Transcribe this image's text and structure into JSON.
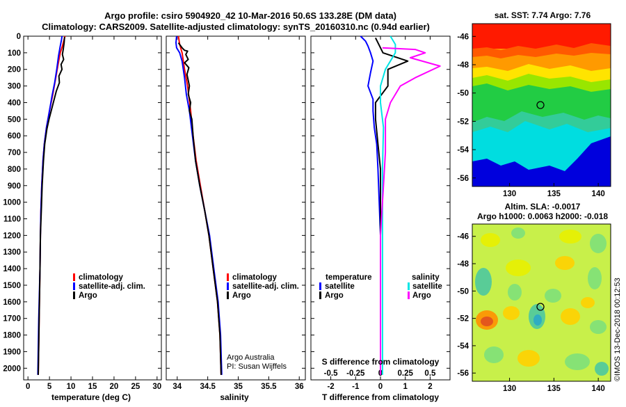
{
  "header": {
    "title_line1": "Argo profile: csiro 5904920_42 10-Mar-2016 50.6S 133.28E (DM data)",
    "title_line2": "Climatology: CARS2009. Satellite-adjusted climatology: synTS_20160310.nc (0.94d earlier)"
  },
  "colors": {
    "climatology": "#ff0000",
    "satellite": "#0000ff",
    "argo": "#000000",
    "sat_salinity": "#00e5e5",
    "argo_salinity": "#ff00ff"
  },
  "depth_ticks": [
    "0",
    "100",
    "200",
    "300",
    "400",
    "500",
    "600",
    "700",
    "800",
    "900",
    "1000",
    "1100",
    "1200",
    "1300",
    "1400",
    "1500",
    "1600",
    "1700",
    "1800",
    "1900",
    "2000"
  ],
  "chart_data": [
    {
      "type": "line",
      "id": "temperature",
      "xlabel": "temperature (deg C)",
      "xlim": [
        -1,
        31
      ],
      "ylim": [
        0,
        2070
      ],
      "y_inverted": true,
      "xticks": [
        "0",
        "5",
        "10",
        "15",
        "20",
        "25",
        "30"
      ],
      "legend": [
        "climatology",
        "satellite-adj. clim.",
        "Argo"
      ],
      "series": [
        {
          "name": "climatology",
          "color": "#ff0000",
          "points": [
            [
              8.6,
              0
            ],
            [
              8.4,
              20
            ],
            [
              8.0,
              60
            ],
            [
              7.5,
              100
            ],
            [
              7.0,
              170
            ],
            [
              6.4,
              260
            ],
            [
              5.7,
              360
            ],
            [
              5.0,
              450
            ],
            [
              4.3,
              550
            ],
            [
              3.8,
              650
            ],
            [
              3.5,
              750
            ],
            [
              3.2,
              900
            ],
            [
              3.0,
              1050
            ],
            [
              2.9,
              1200
            ],
            [
              2.8,
              1400
            ],
            [
              2.6,
              1700
            ],
            [
              2.4,
              2040
            ]
          ]
        },
        {
          "name": "satellite-adj. clim.",
          "color": "#0000ff",
          "points": [
            [
              7.9,
              0
            ],
            [
              7.8,
              20
            ],
            [
              7.5,
              60
            ],
            [
              7.1,
              120
            ],
            [
              6.7,
              200
            ],
            [
              6.2,
              280
            ],
            [
              5.6,
              360
            ],
            [
              5.0,
              450
            ],
            [
              4.3,
              550
            ],
            [
              3.8,
              650
            ],
            [
              3.5,
              750
            ],
            [
              3.2,
              900
            ],
            [
              3.0,
              1050
            ],
            [
              2.9,
              1200
            ],
            [
              2.8,
              1400
            ],
            [
              2.5,
              1700
            ],
            [
              2.3,
              2040
            ]
          ]
        },
        {
          "name": "Argo",
          "color": "#000000",
          "points": [
            [
              8.5,
              5
            ],
            [
              8.4,
              40
            ],
            [
              8.2,
              80
            ],
            [
              8.0,
              110
            ],
            [
              8.3,
              140
            ],
            [
              7.7,
              170
            ],
            [
              7.9,
              200
            ],
            [
              7.2,
              240
            ],
            [
              7.3,
              280
            ],
            [
              6.6,
              330
            ],
            [
              6.1,
              380
            ],
            [
              5.5,
              440
            ],
            [
              4.9,
              500
            ],
            [
              4.4,
              560
            ],
            [
              3.9,
              650
            ],
            [
              3.6,
              750
            ],
            [
              3.3,
              900
            ],
            [
              3.1,
              1050
            ],
            [
              2.9,
              1200
            ],
            [
              2.8,
              1400
            ],
            [
              2.6,
              1700
            ],
            [
              2.4,
              2040
            ]
          ]
        }
      ]
    },
    {
      "type": "line",
      "id": "salinity",
      "xlabel": "salinity",
      "xlim": [
        33.82,
        36.1
      ],
      "ylim": [
        0,
        2070
      ],
      "y_inverted": true,
      "xticks": [
        "34",
        "34.5",
        "35",
        "35.5",
        "36"
      ],
      "legend": [
        "climatology",
        "satellite-adj. clim.",
        "Argo"
      ],
      "annotation": [
        "Argo Australia",
        "PI: Susan Wijffels"
      ],
      "series": [
        {
          "name": "climatology",
          "color": "#ff0000",
          "points": [
            [
              34.02,
              0
            ],
            [
              34.04,
              50
            ],
            [
              34.08,
              100
            ],
            [
              34.12,
              200
            ],
            [
              34.17,
              300
            ],
            [
              34.22,
              450
            ],
            [
              34.26,
              600
            ],
            [
              34.31,
              750
            ],
            [
              34.38,
              900
            ],
            [
              34.45,
              1050
            ],
            [
              34.52,
              1200
            ],
            [
              34.59,
              1400
            ],
            [
              34.66,
              1600
            ],
            [
              34.7,
              1800
            ],
            [
              34.72,
              2040
            ]
          ]
        },
        {
          "name": "satellite-adj. clim.",
          "color": "#0000ff",
          "points": [
            [
              33.99,
              0
            ],
            [
              33.98,
              40
            ],
            [
              33.99,
              70
            ],
            [
              34.04,
              100
            ],
            [
              34.08,
              150
            ],
            [
              34.12,
              250
            ],
            [
              34.15,
              350
            ],
            [
              34.2,
              450
            ],
            [
              34.25,
              600
            ],
            [
              34.3,
              750
            ],
            [
              34.37,
              900
            ],
            [
              34.45,
              1050
            ],
            [
              34.53,
              1200
            ],
            [
              34.6,
              1400
            ],
            [
              34.67,
              1600
            ],
            [
              34.71,
              1800
            ],
            [
              34.73,
              2040
            ]
          ]
        },
        {
          "name": "Argo",
          "color": "#000000",
          "points": [
            [
              34.02,
              40
            ],
            [
              34.08,
              70
            ],
            [
              34.12,
              85
            ],
            [
              34.17,
              90
            ],
            [
              34.14,
              110
            ],
            [
              34.18,
              140
            ],
            [
              34.12,
              160
            ],
            [
              34.19,
              190
            ],
            [
              34.16,
              230
            ],
            [
              34.2,
              300
            ],
            [
              34.18,
              350
            ],
            [
              34.22,
              400
            ],
            [
              34.2,
              450
            ],
            [
              34.24,
              500
            ],
            [
              34.26,
              600
            ],
            [
              34.3,
              750
            ],
            [
              34.37,
              900
            ],
            [
              34.45,
              1050
            ],
            [
              34.52,
              1200
            ],
            [
              34.59,
              1400
            ],
            [
              34.66,
              1600
            ],
            [
              34.7,
              1800
            ],
            [
              34.72,
              2040
            ]
          ]
        }
      ]
    },
    {
      "type": "line",
      "id": "difference",
      "xlabel": "T difference from climatology",
      "xlabel2": "S difference from climatology",
      "xlim": [
        -2.8,
        2.8
      ],
      "ylim": [
        0,
        2070
      ],
      "y_inverted": true,
      "xticks": [
        "-2",
        "-1",
        "0",
        "1",
        "2"
      ],
      "xticks2": [
        "-0.5",
        "-0.25",
        "0",
        "0.25",
        "0.5"
      ],
      "legend": {
        "temperature_head": "temperature",
        "salinity_head": "salinity",
        "temp_items": [
          "satellite",
          "Argo"
        ],
        "sal_items": [
          "satellite",
          "Argo"
        ]
      },
      "series": [
        {
          "name": "T satellite",
          "color": "#0000ff",
          "points": [
            [
              -0.8,
              0
            ],
            [
              -0.6,
              30
            ],
            [
              -0.5,
              60
            ],
            [
              -0.4,
              100
            ],
            [
              -0.3,
              150
            ],
            [
              -0.4,
              220
            ],
            [
              -0.5,
              300
            ],
            [
              -0.3,
              380
            ],
            [
              -0.3,
              450
            ],
            [
              -0.25,
              550
            ],
            [
              -0.15,
              650
            ],
            [
              -0.1,
              800
            ],
            [
              -0.05,
              1000
            ],
            [
              0,
              1200
            ],
            [
              0,
              1500
            ],
            [
              0,
              2040
            ]
          ]
        },
        {
          "name": "T Argo",
          "color": "#000000",
          "points": [
            [
              -0.2,
              10
            ],
            [
              0.1,
              100
            ],
            [
              1.1,
              150
            ],
            [
              0.3,
              200
            ],
            [
              0.3,
              300
            ],
            [
              -0.2,
              400
            ],
            [
              -0.2,
              500
            ],
            [
              -0.1,
              650
            ],
            [
              0,
              800
            ],
            [
              0,
              1000
            ],
            [
              0,
              1500
            ],
            [
              0,
              2040
            ]
          ]
        },
        {
          "name": "S satellite",
          "color": "#00e5e5",
          "points": [
            [
              0.1,
              0
            ],
            [
              0.15,
              50
            ],
            [
              0.15,
              100
            ],
            [
              0.05,
              200
            ],
            [
              0,
              300
            ],
            [
              0,
              400
            ],
            [
              0.03,
              550
            ],
            [
              0.02,
              800
            ],
            [
              0.02,
              1100
            ],
            [
              0.02,
              1500
            ],
            [
              0.02,
              2040
            ]
          ]
        },
        {
          "name": "S Argo",
          "color": "#ff00ff",
          "points": [
            [
              0.02,
              70
            ],
            [
              0.35,
              80
            ],
            [
              0.45,
              100
            ],
            [
              0.3,
              130
            ],
            [
              0.6,
              180
            ],
            [
              0.35,
              250
            ],
            [
              0.2,
              300
            ],
            [
              0.1,
              400
            ],
            [
              0.05,
              500
            ],
            [
              0.05,
              700
            ],
            [
              0.03,
              900
            ],
            [
              0,
              1200
            ],
            [
              0,
              1600
            ],
            [
              0,
              2040
            ]
          ]
        }
      ]
    }
  ],
  "maps": {
    "sst": {
      "title": "sat. SST: 7.74 Argo: 7.76",
      "lat_ticks": [
        "-46",
        "-48",
        "-50",
        "-52",
        "-54",
        "-56"
      ],
      "lon_ticks": [
        "130",
        "135",
        "140"
      ]
    },
    "sla": {
      "title1": "Altim. SLA: -0.0017",
      "title2": "Argo h1000: 0.0063 h2000: -0.018",
      "lat_ticks": [
        "-46",
        "-48",
        "-50",
        "-52",
        "-54",
        "-56"
      ],
      "lon_ticks": [
        "130",
        "135",
        "140"
      ]
    },
    "argo_position": {
      "lon": 133.28,
      "lat": -50.6
    }
  },
  "footer": {
    "credit": "©IMOS 13-Dec-2018 00:12:53"
  }
}
